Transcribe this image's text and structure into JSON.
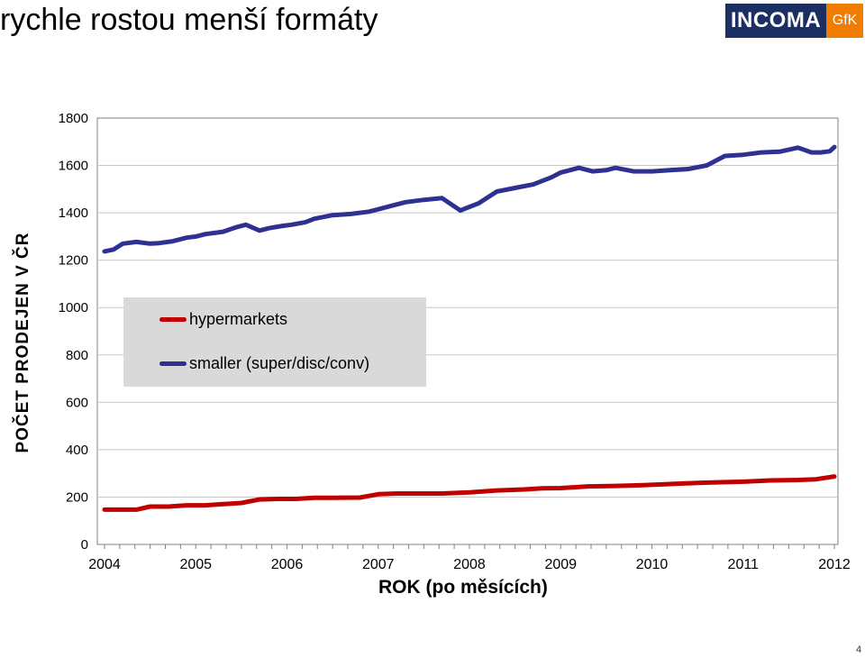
{
  "slide": {
    "title": "rychle rostou menší formáty",
    "page_number": "4"
  },
  "logo": {
    "main": "INCOMA",
    "gfk": "GfK"
  },
  "colors": {
    "hypermarkets": "#c00000",
    "smaller": "#2e3192",
    "logo_main": "#1c2f63",
    "logo_gfk": "#f07d00"
  },
  "chart_data": {
    "type": "line",
    "ylabel": "POČET PRODEJEN V ČR",
    "xlabel": "ROK (po měsících)",
    "ylim": [
      0,
      1800
    ],
    "yticks": [
      "0",
      "200",
      "400",
      "600",
      "800",
      "1000",
      "1200",
      "1400",
      "1600",
      "1800"
    ],
    "xticks": [
      "2004",
      "2005",
      "2006",
      "2007",
      "2008",
      "2009",
      "2010",
      "2011",
      "2012"
    ],
    "x_range": [
      2004.0,
      2012.0
    ],
    "grid": "horizontal",
    "legend_placement": "center-left",
    "series": [
      {
        "name": "hypermarkets",
        "x": [
          2004.0,
          2004.2,
          2004.35,
          2004.5,
          2004.7,
          2004.9,
          2005.1,
          2005.3,
          2005.5,
          2005.7,
          2005.9,
          2006.1,
          2006.3,
          2006.5,
          2006.8,
          2007.0,
          2007.2,
          2007.5,
          2007.7,
          2008.0,
          2008.3,
          2008.6,
          2008.8,
          2009.0,
          2009.3,
          2009.6,
          2009.9,
          2010.2,
          2010.5,
          2010.8,
          2011.0,
          2011.3,
          2011.6,
          2011.8,
          2012.0
        ],
        "values": [
          147,
          147,
          147,
          160,
          160,
          165,
          165,
          170,
          175,
          190,
          192,
          192,
          197,
          197,
          198,
          212,
          215,
          215,
          215,
          220,
          228,
          232,
          237,
          238,
          245,
          247,
          250,
          255,
          260,
          263,
          265,
          270,
          272,
          275,
          287
        ]
      },
      {
        "name": "smaller (super/disc/conv)",
        "x": [
          2004.0,
          2004.1,
          2004.2,
          2004.35,
          2004.5,
          2004.6,
          2004.75,
          2004.9,
          2005.0,
          2005.1,
          2005.3,
          2005.45,
          2005.55,
          2005.7,
          2005.8,
          2005.95,
          2006.05,
          2006.2,
          2006.3,
          2006.5,
          2006.7,
          2006.9,
          2007.0,
          2007.15,
          2007.3,
          2007.5,
          2007.7,
          2007.9,
          2008.1,
          2008.3,
          2008.5,
          2008.7,
          2008.9,
          2009.0,
          2009.1,
          2009.2,
          2009.35,
          2009.5,
          2009.6,
          2009.8,
          2010.0,
          2010.2,
          2010.4,
          2010.6,
          2010.8,
          2011.0,
          2011.2,
          2011.4,
          2011.6,
          2011.75,
          2011.85,
          2011.95,
          2012.0
        ],
        "values": [
          1237,
          1245,
          1270,
          1277,
          1270,
          1272,
          1280,
          1295,
          1300,
          1310,
          1320,
          1340,
          1350,
          1325,
          1335,
          1345,
          1350,
          1360,
          1375,
          1390,
          1395,
          1405,
          1415,
          1430,
          1445,
          1455,
          1462,
          1410,
          1440,
          1490,
          1505,
          1520,
          1550,
          1570,
          1580,
          1590,
          1575,
          1580,
          1590,
          1575,
          1575,
          1580,
          1585,
          1600,
          1640,
          1645,
          1655,
          1658,
          1675,
          1655,
          1655,
          1660,
          1678
        ]
      }
    ]
  }
}
